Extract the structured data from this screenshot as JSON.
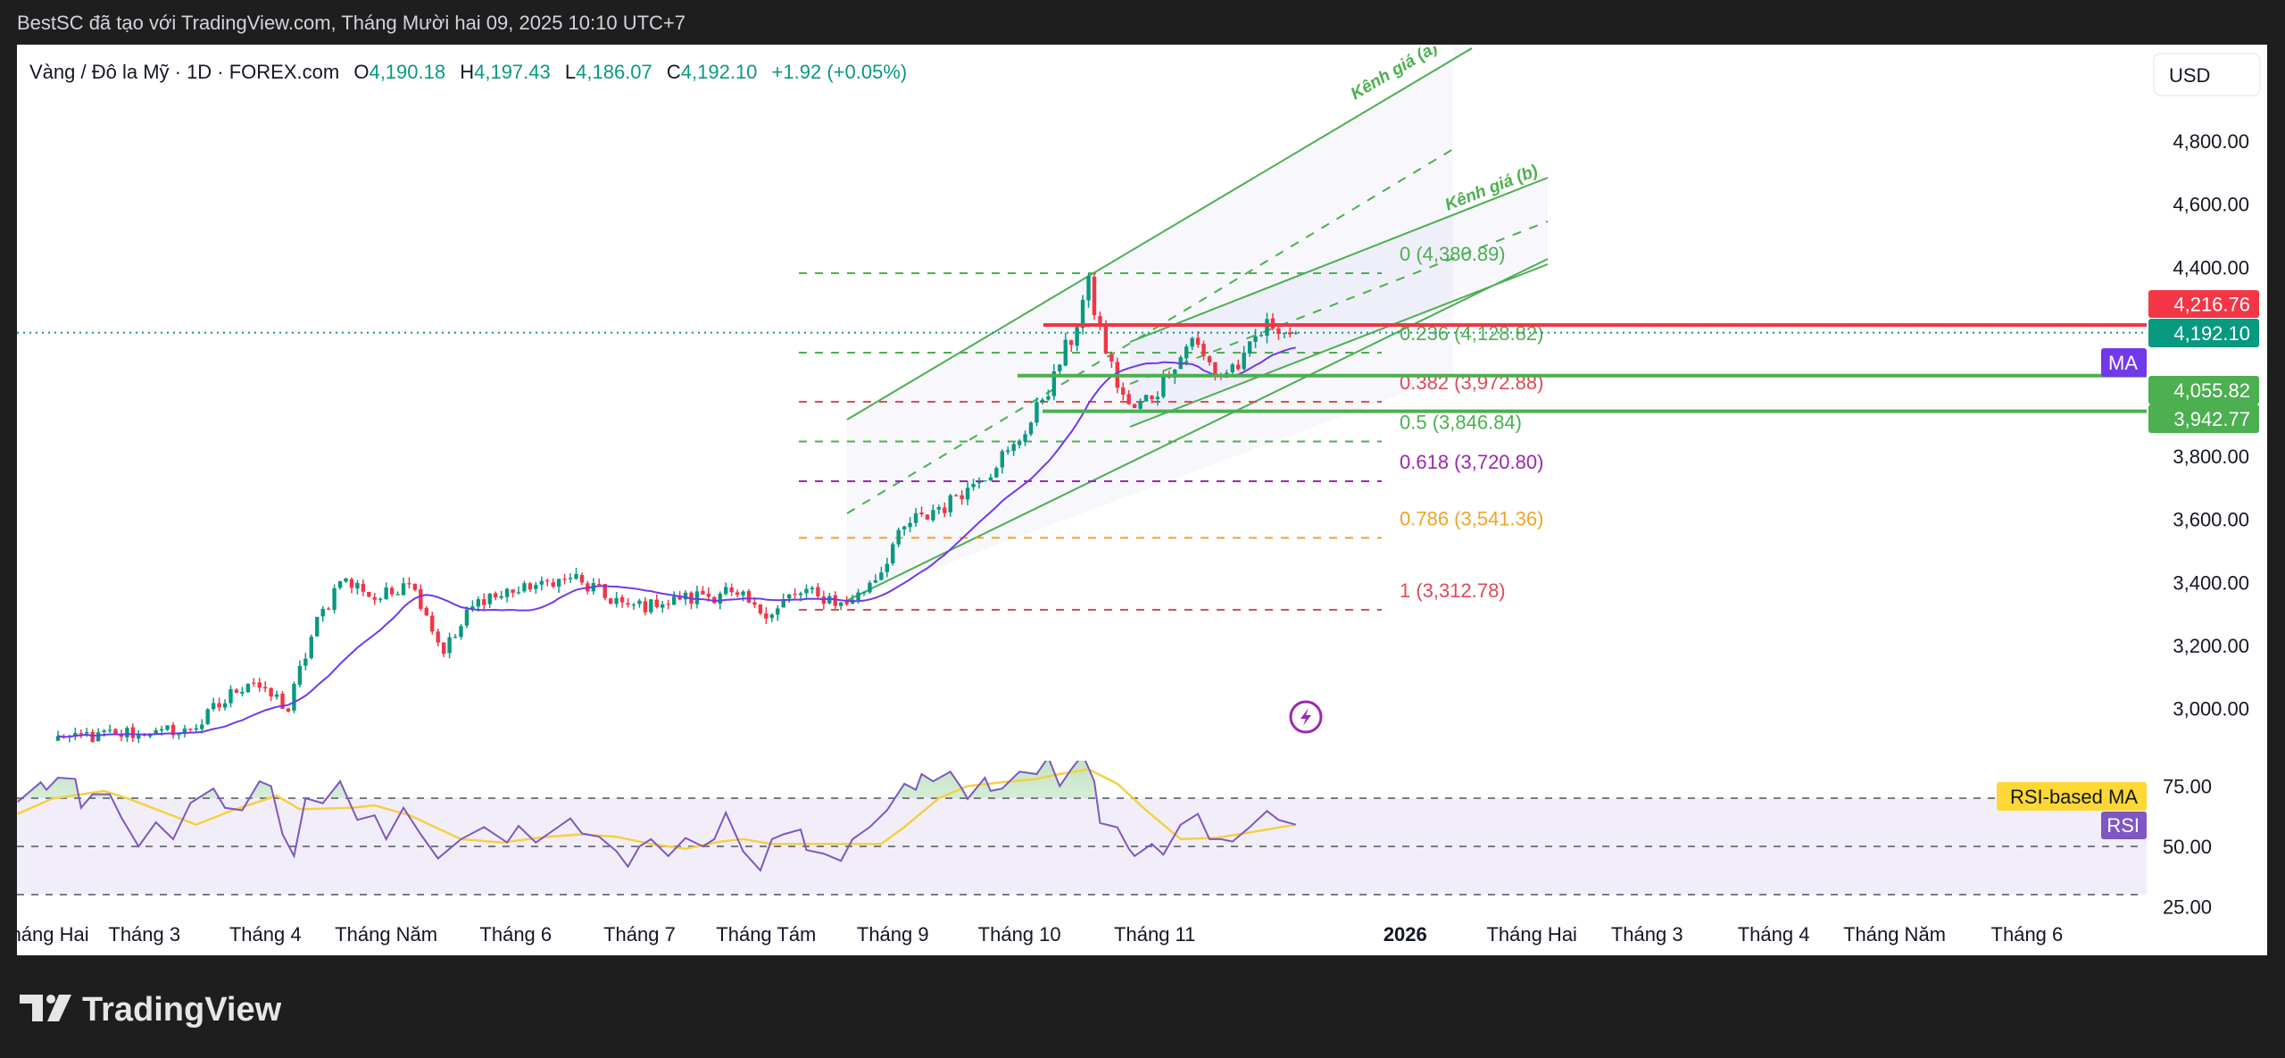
{
  "header": {
    "attribution": "BestSC đã tạo với TradingView.com, Tháng Mười hai 09, 2025 10:10 UTC+7"
  },
  "legend": {
    "symbol": "Vàng / Đô la Mỹ · 1D · FOREX.com",
    "o_label": "O",
    "open": "4,190.18",
    "h_label": "H",
    "high": "4,197.43",
    "l_label": "L",
    "low": "4,186.07",
    "c_label": "C",
    "close": "4,192.10",
    "change": "+1.92 (+0.05%)"
  },
  "currency_button": "USD",
  "logo_text": "TradingView",
  "colors": {
    "up": "#089981",
    "down": "#f23645",
    "channel": "#4caf50",
    "ma": "#7239ea",
    "rsi": "#7e57c2",
    "rsi_ma": "#f5d042"
  },
  "chart_data": {
    "type": "candlestick",
    "timeframe": "1D",
    "x_unit": "trading day index",
    "price_range": [
      2880,
      4880
    ],
    "price_ticks": [
      {
        "value": 4800,
        "label": "4,800.00"
      },
      {
        "value": 4600,
        "label": "4,600.00"
      },
      {
        "value": 4400,
        "label": "4,400.00"
      },
      {
        "value": 3800,
        "label": "3,800.00"
      },
      {
        "value": 3600,
        "label": "3,600.00"
      },
      {
        "value": 3400,
        "label": "3,400.00"
      },
      {
        "value": 3200,
        "label": "3,200.00"
      },
      {
        "value": 3000,
        "label": "3,000.00"
      }
    ],
    "time_ticks": [
      {
        "d": -2.5,
        "label": "Tháng Hai",
        "bold": false
      },
      {
        "d": 15,
        "label": "Tháng 3",
        "bold": false
      },
      {
        "d": 36,
        "label": "Tháng 4",
        "bold": false
      },
      {
        "d": 57,
        "label": "Tháng Năm",
        "bold": false
      },
      {
        "d": 79.5,
        "label": "Tháng 6",
        "bold": false
      },
      {
        "d": 101,
        "label": "Tháng 7",
        "bold": false
      },
      {
        "d": 123,
        "label": "Tháng Tám",
        "bold": false
      },
      {
        "d": 145,
        "label": "Tháng 9",
        "bold": false
      },
      {
        "d": 167,
        "label": "Tháng 10",
        "bold": false
      },
      {
        "d": 190.5,
        "label": "Tháng 11",
        "bold": false
      },
      {
        "d": 234,
        "label": "2026",
        "bold": true
      },
      {
        "d": 256,
        "label": "Tháng Hai",
        "bold": false
      },
      {
        "d": 276,
        "label": "Tháng 3",
        "bold": false
      },
      {
        "d": 298,
        "label": "Tháng 4",
        "bold": false
      },
      {
        "d": 319,
        "label": "Tháng Năm",
        "bold": false
      },
      {
        "d": 342,
        "label": "Tháng 6",
        "bold": false
      }
    ],
    "price_path": [
      [
        0,
        2906
      ],
      [
        23,
        2930
      ],
      [
        33,
        3090
      ],
      [
        40,
        3000
      ],
      [
        44,
        3230
      ],
      [
        49,
        3415
      ],
      [
        56,
        3345
      ],
      [
        61,
        3415
      ],
      [
        67,
        3180
      ],
      [
        73,
        3345
      ],
      [
        89,
        3415
      ],
      [
        99,
        3320
      ],
      [
        116,
        3370
      ],
      [
        123,
        3300
      ],
      [
        129,
        3370
      ],
      [
        137,
        3330
      ],
      [
        142,
        3415
      ],
      [
        147,
        3575
      ],
      [
        154,
        3645
      ],
      [
        162,
        3760
      ],
      [
        167,
        3850
      ],
      [
        172,
        4015
      ],
      [
        176,
        4175
      ],
      [
        179,
        4340
      ],
      [
        182,
        4130
      ],
      [
        186,
        3945
      ],
      [
        190,
        3990
      ],
      [
        197,
        4175
      ],
      [
        201,
        4060
      ],
      [
        205,
        4085
      ],
      [
        210,
        4220
      ],
      [
        215,
        4192.1
      ]
    ],
    "last_bar": {
      "open": 4190.18,
      "high": 4197.43,
      "low": 4186.07,
      "close": 4192.1
    },
    "ma_period": 20,
    "fib_retracement": [
      {
        "level": "0",
        "price": 4380.89,
        "label": "0 (4,380.89)",
        "color": "#4caf50"
      },
      {
        "level": "0.236",
        "price": 4128.82,
        "label": "0.236 (4,128.82)",
        "color": "#4caf50"
      },
      {
        "level": "0.382",
        "price": 3972.88,
        "label": "0.382 (3,972.88)",
        "color": "#e04a58"
      },
      {
        "level": "0.5",
        "price": 3846.84,
        "label": "0.5 (3,846.84)",
        "color": "#4caf50"
      },
      {
        "level": "0.618",
        "price": 3720.8,
        "label": "0.618 (3,720.80)",
        "color": "#9c27b0"
      },
      {
        "level": "0.786",
        "price": 3541.36,
        "label": "0.786 (3,541.36)",
        "color": "#f0a424"
      },
      {
        "level": "1",
        "price": 3312.78,
        "label": "1 (3,312.78)",
        "color": "#e04a58"
      }
    ],
    "horizontal_lines": [
      {
        "price": 4216.76,
        "label": "4,216.76",
        "color": "#f23645"
      },
      {
        "price": 4055.82,
        "label": "4,055.82",
        "color": "#4caf50"
      },
      {
        "price": 3942.77,
        "label": "3,942.77",
        "color": "#4caf50"
      }
    ],
    "current_price": {
      "price": 4192.1,
      "label": "4,192.10",
      "color": "#089981"
    },
    "ma_tag": "MA",
    "channels": [
      {
        "label": "Kênh giá (a)"
      },
      {
        "label": "Kênh giá (b)"
      }
    ],
    "rsi": {
      "ticks": [
        {
          "value": 75,
          "label": "75.00"
        },
        {
          "value": 50,
          "label": "50.00"
        },
        {
          "value": 25,
          "label": "25.00"
        }
      ],
      "bands": [
        70,
        50,
        30
      ],
      "tag_rsi": "RSI",
      "tag_ma": "RSI-based MA",
      "values": [
        [
          -7,
          68.5
        ],
        [
          -3,
          76.6
        ],
        [
          -2,
          73.5
        ],
        [
          0,
          78.5
        ],
        [
          3,
          78
        ],
        [
          4,
          66
        ],
        [
          6,
          71.6
        ],
        [
          9,
          71.6
        ],
        [
          11,
          62
        ],
        [
          14,
          50
        ],
        [
          17,
          60
        ],
        [
          20,
          53
        ],
        [
          23,
          68
        ],
        [
          27,
          74
        ],
        [
          29,
          66
        ],
        [
          32,
          65
        ],
        [
          35,
          77
        ],
        [
          37,
          75
        ],
        [
          39,
          55
        ],
        [
          41,
          46
        ],
        [
          43,
          70
        ],
        [
          46,
          67.9
        ],
        [
          49,
          77
        ],
        [
          52,
          61
        ],
        [
          55,
          62.9
        ],
        [
          57,
          53
        ],
        [
          60,
          66
        ],
        [
          63,
          55
        ],
        [
          66,
          45
        ],
        [
          70,
          53
        ],
        [
          74,
          58
        ],
        [
          78,
          51.6
        ],
        [
          80,
          58.5
        ],
        [
          83,
          51.6
        ],
        [
          89,
          61.6
        ],
        [
          91,
          55.4
        ],
        [
          94,
          54
        ],
        [
          97,
          48
        ],
        [
          99,
          41.6
        ],
        [
          101,
          50
        ],
        [
          103,
          53
        ],
        [
          106,
          46
        ],
        [
          109,
          53.5
        ],
        [
          112,
          50
        ],
        [
          114,
          53
        ],
        [
          116,
          64
        ],
        [
          119,
          48
        ],
        [
          122,
          40
        ],
        [
          124,
          53
        ],
        [
          126,
          55
        ],
        [
          129,
          57
        ],
        [
          130,
          48.5
        ],
        [
          133,
          47
        ],
        [
          136,
          44
        ],
        [
          138,
          53
        ],
        [
          141,
          58
        ],
        [
          144,
          65
        ],
        [
          147,
          76
        ],
        [
          149,
          73.5
        ],
        [
          150,
          80
        ],
        [
          152,
          77
        ],
        [
          155,
          81
        ],
        [
          157,
          74
        ],
        [
          158,
          69.7
        ],
        [
          161,
          78.5
        ],
        [
          162,
          73
        ],
        [
          164,
          74
        ],
        [
          167,
          81
        ],
        [
          170,
          80
        ],
        [
          172,
          87
        ],
        [
          174,
          75
        ],
        [
          176,
          82
        ],
        [
          178,
          88
        ],
        [
          180,
          77
        ],
        [
          181,
          59.7
        ],
        [
          184,
          57.9
        ],
        [
          186,
          49
        ],
        [
          187,
          46
        ],
        [
          190,
          51
        ],
        [
          192,
          46.6
        ],
        [
          195,
          59
        ],
        [
          198,
          63.5
        ],
        [
          200,
          53
        ],
        [
          202,
          53
        ],
        [
          204,
          52
        ],
        [
          207,
          58
        ],
        [
          210,
          64.7
        ],
        [
          212,
          61
        ],
        [
          215,
          59
        ]
      ],
      "ma_values": [
        [
          -7,
          63.5
        ],
        [
          -1,
          69.8
        ],
        [
          8,
          73
        ],
        [
          12,
          70
        ],
        [
          24,
          59
        ],
        [
          30,
          64.7
        ],
        [
          38,
          71
        ],
        [
          42,
          65.4
        ],
        [
          51,
          66
        ],
        [
          55,
          67
        ],
        [
          61,
          63
        ],
        [
          70,
          53
        ],
        [
          77,
          51.6
        ],
        [
          85,
          54
        ],
        [
          91,
          55
        ],
        [
          97,
          54
        ],
        [
          103,
          51
        ],
        [
          109,
          49
        ],
        [
          115,
          52
        ],
        [
          119,
          53
        ],
        [
          124,
          51
        ],
        [
          132,
          51
        ],
        [
          143,
          51
        ],
        [
          147,
          58
        ],
        [
          153,
          70
        ],
        [
          158,
          75
        ],
        [
          164,
          76.6
        ],
        [
          170,
          78
        ],
        [
          174,
          80
        ],
        [
          179,
          82
        ],
        [
          184,
          76
        ],
        [
          189,
          65
        ],
        [
          195,
          53
        ],
        [
          201,
          53.5
        ],
        [
          205,
          55
        ],
        [
          210,
          57
        ],
        [
          215,
          59
        ]
      ]
    }
  }
}
